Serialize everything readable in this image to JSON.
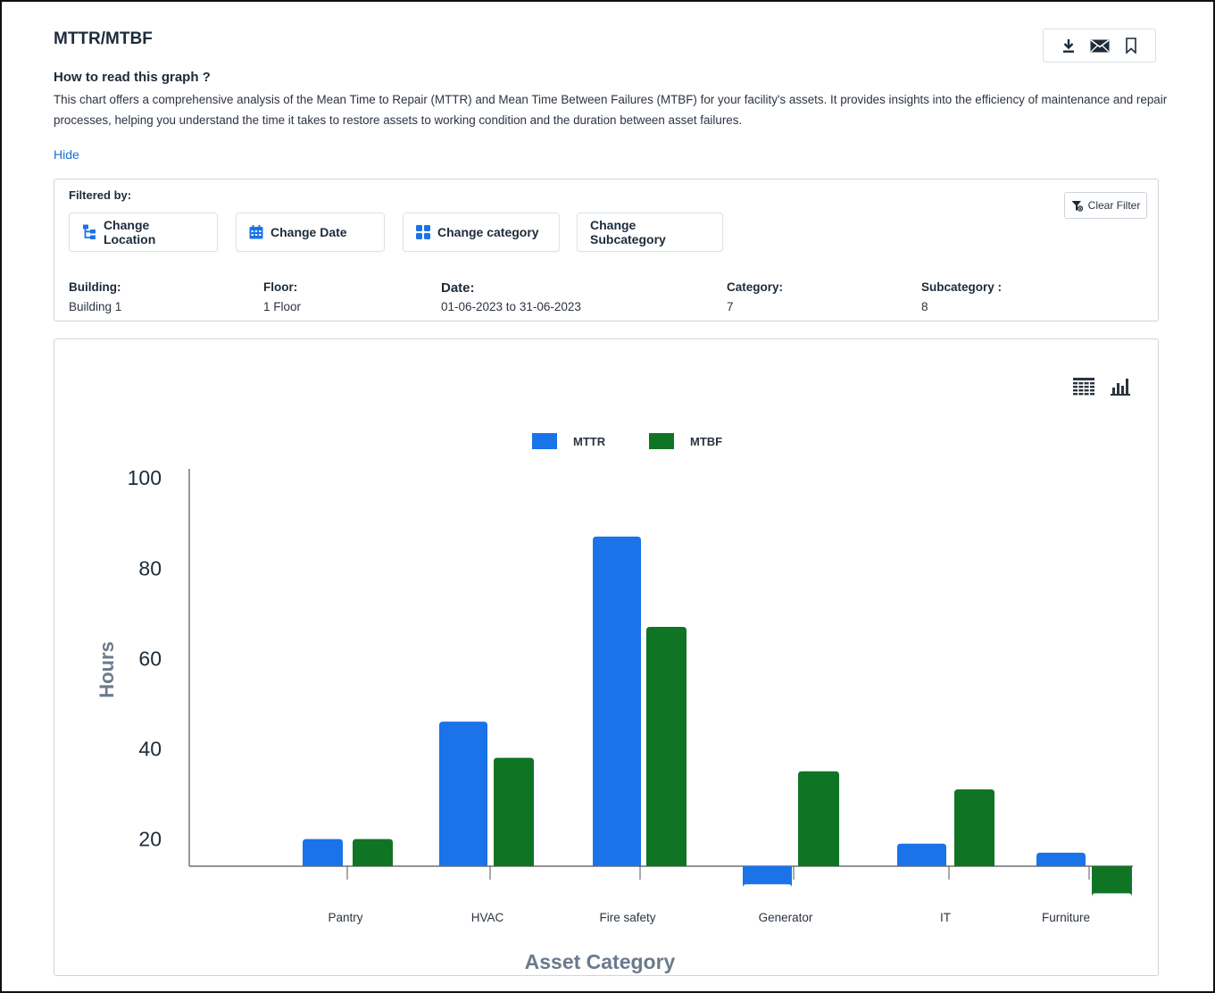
{
  "header": {
    "title": "MTTR/MTBF",
    "actions": [
      {
        "icon": "download-icon"
      },
      {
        "icon": "mail-icon"
      },
      {
        "icon": "bookmark-icon"
      }
    ]
  },
  "help": {
    "title": "How to read this graph ?",
    "description": "This chart offers a comprehensive analysis of the Mean Time to Repair (MTTR) and Mean Time Between Failures (MTBF) for your facility's assets. It provides insights into the efficiency of maintenance and repair processes, helping you understand the time it takes to restore assets to working condition and the duration between asset failures.",
    "hide_label": "Hide"
  },
  "filters": {
    "filtered_by_label": "Filtered by:",
    "clear_label": "Clear Filter",
    "buttons": [
      {
        "label": "Change Location",
        "icon": "location-tree-icon"
      },
      {
        "label": "Change Date",
        "icon": "calendar-icon"
      },
      {
        "label": "Change category",
        "icon": "grid-icon"
      },
      {
        "label": "Change Subcategory"
      }
    ],
    "info": [
      {
        "key": "Building:",
        "value": "Building 1"
      },
      {
        "key": "Floor:",
        "value": "1 Floor"
      },
      {
        "key": "Date:",
        "value": "01-06-2023 to 31-06-2023"
      },
      {
        "key": "Category:",
        "value": "7"
      },
      {
        "key": "Subcategory :",
        "value": "8"
      }
    ]
  },
  "chart_view_icons": [
    "table-view-icon",
    "bar-chart-view-icon"
  ],
  "colors": {
    "mttr": "#1a73e8",
    "mtbf": "#107425",
    "link": "#1a6fd1"
  },
  "chart_data": {
    "type": "bar",
    "categories": [
      "Pantry",
      "HVAC",
      "Fire safety",
      "Generator",
      "IT",
      "Furniture"
    ],
    "series": [
      {
        "name": "MTTR",
        "values": [
          20,
          46,
          87,
          10,
          19,
          17
        ]
      },
      {
        "name": "MTBF",
        "values": [
          20,
          38,
          67,
          35,
          31,
          8
        ]
      }
    ],
    "xlabel": "Asset Category",
    "ylabel": "Hours",
    "yticks": [
      20,
      40,
      60,
      80,
      100
    ],
    "ylim": [
      14,
      102
    ],
    "legend": "top-center",
    "grid": false
  }
}
